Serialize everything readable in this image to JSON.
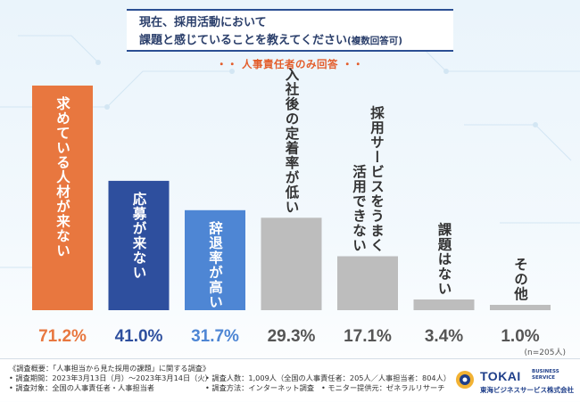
{
  "title": {
    "line1": "現在、採用活動において",
    "line2": "課題と感じていることを教えてください",
    "line2_note": "(複数回答可)"
  },
  "subtitle": "・・ 人事責任者のみ回答 ・・",
  "sample_note": "(n=205人)",
  "chart_data": {
    "type": "bar",
    "title": "現在、採用活動において課題と感じていることを教えてください(複数回答可)",
    "subtitle": "人事責任者のみ回答",
    "categories": [
      "求めている人材が来ない",
      "応募が来ない",
      "辞退率が高い",
      "入社後の定着率が低い",
      "採用サービスをうまく活用できない",
      "課題はない",
      "その他"
    ],
    "values": [
      71.2,
      41.0,
      31.7,
      29.3,
      17.1,
      3.4,
      1.0
    ],
    "value_labels": [
      "71.2%",
      "41.0%",
      "31.7%",
      "29.3%",
      "17.1%",
      "3.4%",
      "1.0%"
    ],
    "label_lines": [
      [
        "求めている人材が来ない"
      ],
      [
        "応募が来ない"
      ],
      [
        "辞退率が高い"
      ],
      [
        "入社後の定着率が低い"
      ],
      [
        "採用サービスをうまく",
        "活用できない"
      ],
      [
        "課題はない"
      ],
      [
        "その他"
      ]
    ],
    "colors": [
      "#e8773f",
      "#2e4f9e",
      "#4e86d4",
      "#bdbdbd",
      "#bdbdbd",
      "#bdbdbd",
      "#bdbdbd"
    ],
    "value_colors": [
      "#e8773f",
      "#2e4f9e",
      "#4e86d4",
      "#555555",
      "#555555",
      "#555555",
      "#555555"
    ],
    "ylim": [
      0,
      71.2
    ],
    "xlabel": "",
    "ylabel": "",
    "grid": false
  },
  "footer": {
    "survey_title": "《調査概要：「人事担当から見た採用の課題」に関する調査》",
    "period": "• 調査期間：2023年3月13日（月）〜2023年3月14日（火）",
    "target": "• 調査対象：全国の人事責任者・人事担当者",
    "count": "• 調査人数：1,009人（全国の人事責任者：205人／人事担当者：804人）",
    "method": "• 調査方法：インターネット調査",
    "monitor": "• モニター提供元：ゼネラルリサーチ"
  },
  "logo": {
    "main": "TOKAI",
    "sub1": "BUSINESS",
    "sub2": "SERVICE",
    "company": "東海ビジネスサービス株式会社"
  }
}
